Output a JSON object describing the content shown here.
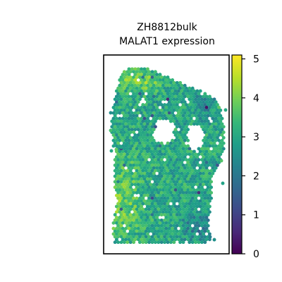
{
  "chart_data": {
    "type": "heatmap",
    "subtype": "spatial-spot-map",
    "title": [
      "ZH8812bulk",
      "MALAT1 expression"
    ],
    "xlabel": "",
    "ylabel": "",
    "colormap": "viridis",
    "color_range": [
      0,
      5.1
    ],
    "colorbar": {
      "ticks": [
        0,
        1,
        2,
        3,
        4,
        5
      ],
      "tick_labels": [
        "0",
        "1",
        "2",
        "3",
        "4",
        "5"
      ],
      "placement": "right"
    },
    "axes_ticks_visible": false,
    "grid": false,
    "value_summary": {
      "typical_range": [
        2,
        4.2
      ],
      "dominant_value": 3,
      "max_value_approx": 5,
      "min_value_approx": 0.3
    },
    "notable_regions": [
      {
        "name": "top-left corner",
        "value_approx": 4.6
      },
      {
        "name": "left and lower-left tissue",
        "value_approx": 3.9
      },
      {
        "name": "central tissue",
        "value_approx": 3.0
      },
      {
        "name": "lower-right tissue",
        "value_approx": 2.2
      }
    ]
  },
  "colors": {
    "viridis": [
      "#440154",
      "#482878",
      "#3e4989",
      "#31688e",
      "#26828e",
      "#1f9e89",
      "#35b779",
      "#6ece58",
      "#b5de2b",
      "#fde725"
    ],
    "frame": "#000000",
    "background": "#ffffff"
  }
}
